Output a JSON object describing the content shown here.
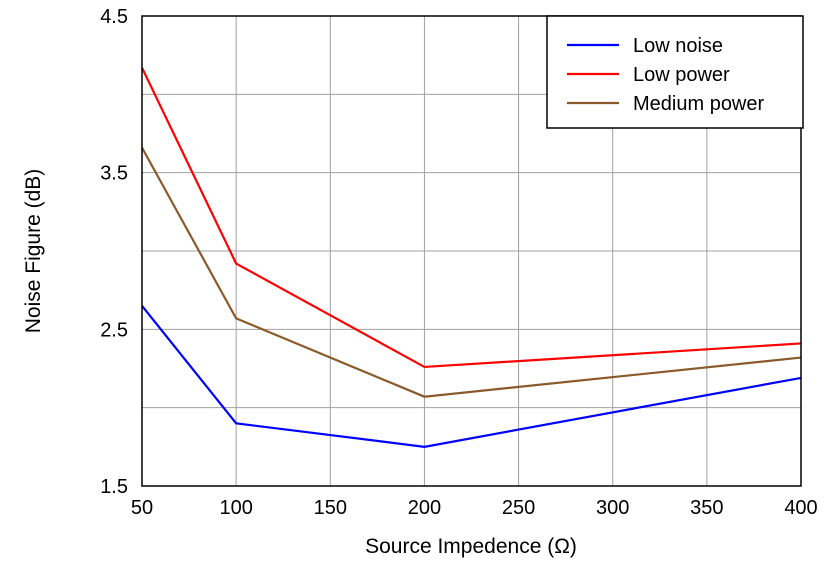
{
  "chart_data": {
    "type": "line",
    "title": "",
    "xlabel": "Source Impedence (Ω)",
    "ylabel": "Noise Figure (dB)",
    "xlim": [
      50,
      400
    ],
    "ylim": [
      1.5,
      4.5
    ],
    "xticks": [
      50,
      100,
      150,
      200,
      250,
      300,
      350,
      400
    ],
    "yticks": [
      1.5,
      2.5,
      3.5,
      4.5
    ],
    "ygrid_step": 0.5,
    "grid": true,
    "legend_position": "top-right",
    "x": [
      50,
      100,
      200,
      400
    ],
    "series": [
      {
        "name": "Low noise",
        "color": "#0000ff",
        "values": [
          2.65,
          1.9,
          1.75,
          2.19
        ]
      },
      {
        "name": "Low power",
        "color": "#ff0000",
        "values": [
          4.17,
          2.92,
          2.26,
          2.41
        ]
      },
      {
        "name": "Medium power",
        "color": "#8b5a2b",
        "values": [
          3.66,
          2.57,
          2.07,
          2.32
        ]
      }
    ]
  }
}
